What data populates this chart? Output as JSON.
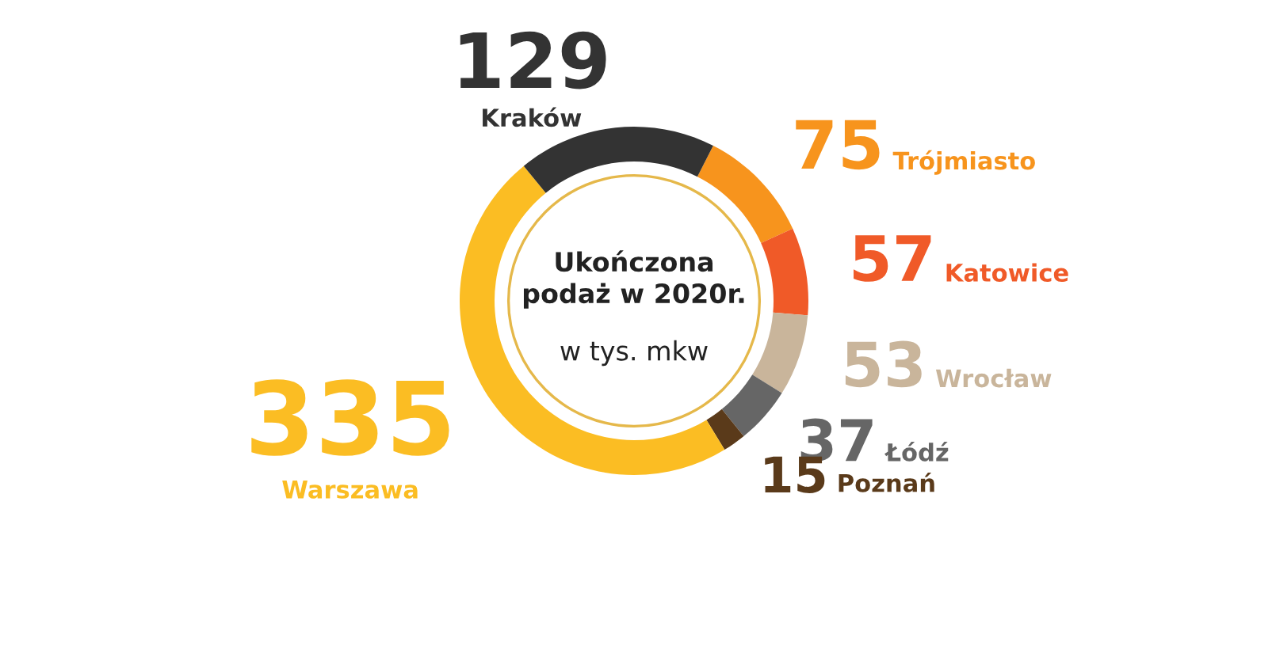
{
  "chart_data": {
    "type": "donut",
    "title": "Ukończona podaż w 2020r.",
    "subtitle": "w tys. mkw",
    "categories": [
      "Trójmiasto",
      "Katowice",
      "Wrocław",
      "Łódź",
      "Poznań",
      "Warszawa",
      "Kraków"
    ],
    "values": [
      75,
      57,
      53,
      37,
      15,
      335,
      129
    ],
    "colors": [
      "#f7941d",
      "#f05a28",
      "#c9b59b",
      "#666666",
      "#5a3a1a",
      "#fbbd23",
      "#333333"
    ],
    "data_labels": true,
    "legend": false
  }
}
